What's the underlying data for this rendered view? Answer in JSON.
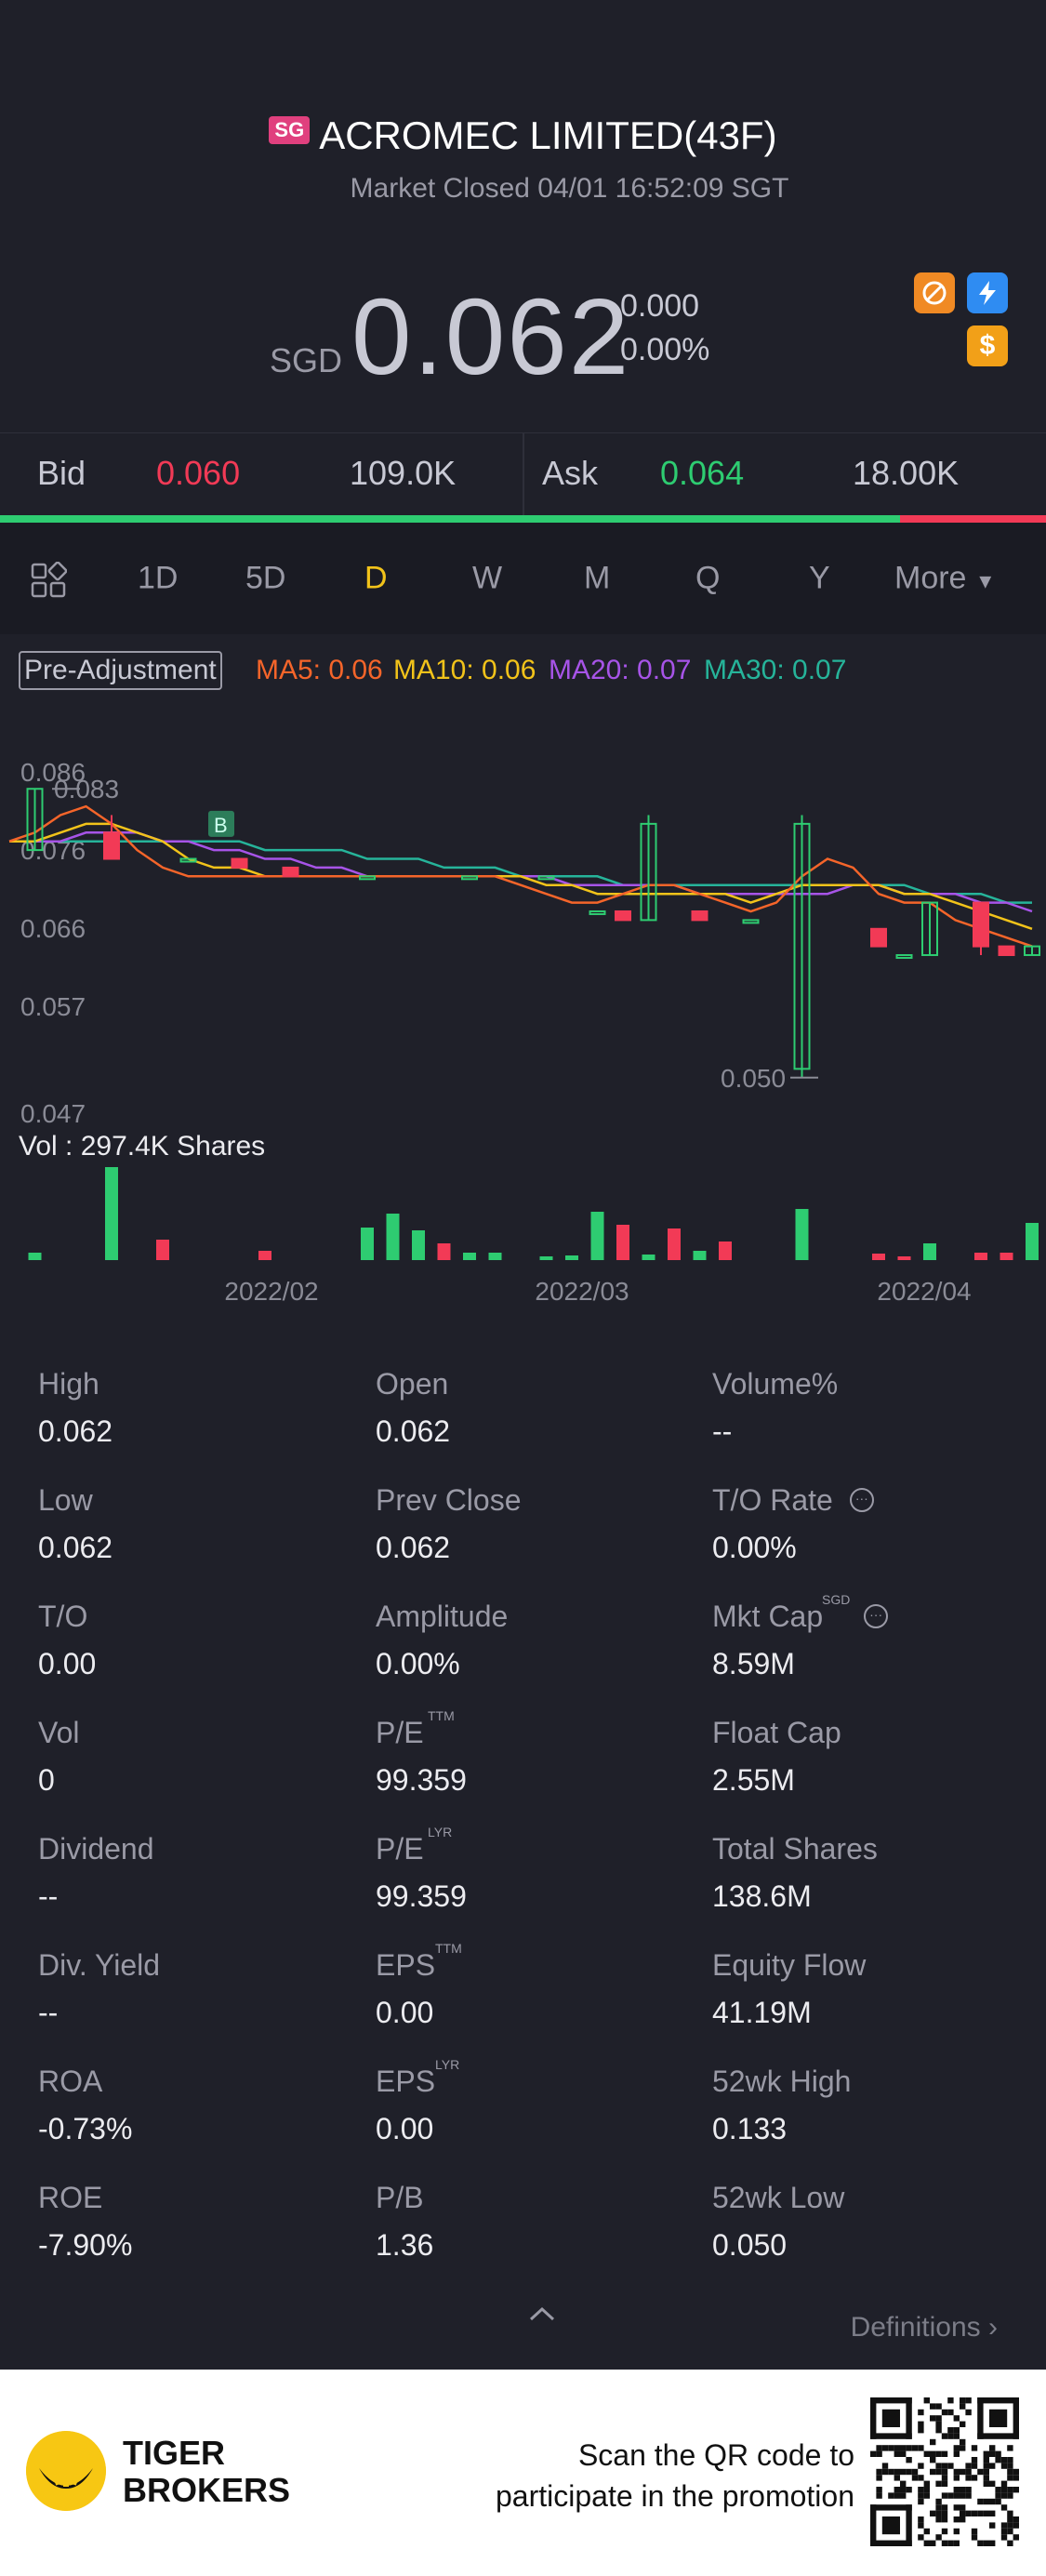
{
  "header": {
    "market_flag": "SG",
    "title": "ACROMEC LIMITED(43F)",
    "status": "Market Closed 04/01 16:52:09 SGT",
    "currency": "SGD",
    "price": "0.062",
    "change": "0.000",
    "change_pct": "0.00%",
    "badges": [
      "no-entry-icon",
      "lightning-icon",
      "dollar-icon"
    ]
  },
  "bidask": {
    "bid_label": "Bid",
    "bid_price": "0.060",
    "bid_size": "109.0K",
    "ask_label": "Ask",
    "ask_price": "0.064",
    "ask_size": "18.00K",
    "bid_fraction": 0.86
  },
  "tabs": [
    "1D",
    "5D",
    "D",
    "W",
    "M",
    "Q",
    "Y",
    "More"
  ],
  "active_tab": "D",
  "ma": {
    "pre_adjustment": "Pre-Adjustment",
    "ma5": "MA5: 0.06",
    "ma10": "MA10: 0.06",
    "ma20": "MA20: 0.07",
    "ma30": "MA30: 0.07"
  },
  "chart_data": {
    "type": "candlestick",
    "y_ticks": [
      "0.086",
      "0.076",
      "0.066",
      "0.057",
      "0.047"
    ],
    "ylim": [
      0.047,
      0.086
    ],
    "x_ticks": [
      "2022/02",
      "2022/03",
      "2022/04"
    ],
    "annotations": {
      "high_label": "0.083",
      "low_label": "0.050",
      "marker": "B"
    },
    "volume_label": "Vol  : 297.4K Shares",
    "colors": {
      "up": "#2ecc71",
      "down": "#f23a56",
      "ma5": "#f5652a",
      "ma10": "#f2c31a",
      "ma20": "#a754e8",
      "ma30": "#26b49a"
    },
    "candles": [
      {
        "i": 1,
        "o": 0.076,
        "c": 0.083,
        "h": 0.083,
        "l": 0.076
      },
      {
        "i": 4,
        "o": 0.078,
        "c": 0.075,
        "h": 0.08,
        "l": 0.075
      },
      {
        "i": 7,
        "o": 0.075,
        "c": 0.075,
        "h": 0.075,
        "l": 0.075
      },
      {
        "i": 9,
        "o": 0.075,
        "c": 0.074,
        "h": 0.075,
        "l": 0.074
      },
      {
        "i": 11,
        "o": 0.074,
        "c": 0.073,
        "h": 0.074,
        "l": 0.073
      },
      {
        "i": 14,
        "o": 0.073,
        "c": 0.073,
        "h": 0.073,
        "l": 0.073
      },
      {
        "i": 18,
        "o": 0.073,
        "c": 0.073,
        "h": 0.073,
        "l": 0.073
      },
      {
        "i": 21,
        "o": 0.073,
        "c": 0.073,
        "h": 0.073,
        "l": 0.073
      },
      {
        "i": 23,
        "o": 0.069,
        "c": 0.069,
        "h": 0.069,
        "l": 0.069
      },
      {
        "i": 24,
        "o": 0.069,
        "c": 0.068,
        "h": 0.069,
        "l": 0.068
      },
      {
        "i": 25,
        "o": 0.068,
        "c": 0.079,
        "h": 0.08,
        "l": 0.068
      },
      {
        "i": 27,
        "o": 0.069,
        "c": 0.068,
        "h": 0.069,
        "l": 0.068
      },
      {
        "i": 29,
        "o": 0.068,
        "c": 0.068,
        "h": 0.068,
        "l": 0.068
      },
      {
        "i": 31,
        "o": 0.051,
        "c": 0.079,
        "h": 0.08,
        "l": 0.05
      },
      {
        "i": 34,
        "o": 0.067,
        "c": 0.065,
        "h": 0.067,
        "l": 0.065
      },
      {
        "i": 35,
        "o": 0.064,
        "c": 0.064,
        "h": 0.064,
        "l": 0.064
      },
      {
        "i": 36,
        "o": 0.064,
        "c": 0.07,
        "h": 0.07,
        "l": 0.064
      },
      {
        "i": 38,
        "o": 0.07,
        "c": 0.065,
        "h": 0.07,
        "l": 0.064
      },
      {
        "i": 39,
        "o": 0.065,
        "c": 0.064,
        "h": 0.065,
        "l": 0.064
      },
      {
        "i": 40,
        "o": 0.064,
        "c": 0.065,
        "h": 0.065,
        "l": 0.064
      }
    ],
    "ma5": [
      0.077,
      0.078,
      0.08,
      0.081,
      0.079,
      0.076,
      0.074,
      0.073,
      0.073,
      0.073,
      0.073,
      0.073,
      0.073,
      0.073,
      0.073,
      0.073,
      0.073,
      0.073,
      0.073,
      0.073,
      0.072,
      0.071,
      0.07,
      0.07,
      0.071,
      0.072,
      0.072,
      0.071,
      0.07,
      0.069,
      0.07,
      0.073,
      0.075,
      0.074,
      0.071,
      0.07,
      0.07,
      0.068,
      0.067,
      0.066,
      0.065
    ],
    "ma10": [
      0.077,
      0.077,
      0.078,
      0.079,
      0.079,
      0.078,
      0.077,
      0.075,
      0.074,
      0.074,
      0.073,
      0.073,
      0.073,
      0.073,
      0.073,
      0.073,
      0.073,
      0.073,
      0.073,
      0.073,
      0.073,
      0.072,
      0.072,
      0.071,
      0.071,
      0.071,
      0.071,
      0.071,
      0.071,
      0.07,
      0.071,
      0.072,
      0.072,
      0.072,
      0.072,
      0.071,
      0.071,
      0.07,
      0.069,
      0.068,
      0.067
    ],
    "ma20": [
      0.077,
      0.077,
      0.077,
      0.078,
      0.078,
      0.078,
      0.077,
      0.077,
      0.076,
      0.076,
      0.075,
      0.075,
      0.074,
      0.074,
      0.073,
      0.073,
      0.073,
      0.073,
      0.073,
      0.073,
      0.073,
      0.073,
      0.072,
      0.072,
      0.072,
      0.072,
      0.072,
      0.071,
      0.071,
      0.071,
      0.071,
      0.071,
      0.071,
      0.072,
      0.072,
      0.071,
      0.071,
      0.071,
      0.07,
      0.07,
      0.069
    ],
    "ma30": [
      0.077,
      0.077,
      0.077,
      0.077,
      0.077,
      0.077,
      0.077,
      0.077,
      0.077,
      0.077,
      0.076,
      0.076,
      0.076,
      0.076,
      0.075,
      0.075,
      0.075,
      0.074,
      0.074,
      0.074,
      0.073,
      0.073,
      0.073,
      0.073,
      0.072,
      0.072,
      0.072,
      0.072,
      0.072,
      0.072,
      0.072,
      0.072,
      0.072,
      0.072,
      0.072,
      0.072,
      0.071,
      0.071,
      0.071,
      0.07,
      0.07
    ],
    "volume": [
      {
        "i": 1,
        "v": 0.08,
        "dir": "up"
      },
      {
        "i": 4,
        "v": 1.0,
        "dir": "up"
      },
      {
        "i": 6,
        "v": 0.22,
        "dir": "down"
      },
      {
        "i": 10,
        "v": 0.1,
        "dir": "down"
      },
      {
        "i": 14,
        "v": 0.35,
        "dir": "up"
      },
      {
        "i": 15,
        "v": 0.5,
        "dir": "up"
      },
      {
        "i": 16,
        "v": 0.32,
        "dir": "up"
      },
      {
        "i": 17,
        "v": 0.18,
        "dir": "down"
      },
      {
        "i": 18,
        "v": 0.08,
        "dir": "up"
      },
      {
        "i": 19,
        "v": 0.08,
        "dir": "up"
      },
      {
        "i": 21,
        "v": 0.04,
        "dir": "up"
      },
      {
        "i": 22,
        "v": 0.05,
        "dir": "up"
      },
      {
        "i": 23,
        "v": 0.52,
        "dir": "up"
      },
      {
        "i": 24,
        "v": 0.38,
        "dir": "down"
      },
      {
        "i": 25,
        "v": 0.06,
        "dir": "up"
      },
      {
        "i": 26,
        "v": 0.34,
        "dir": "down"
      },
      {
        "i": 27,
        "v": 0.1,
        "dir": "up"
      },
      {
        "i": 28,
        "v": 0.2,
        "dir": "down"
      },
      {
        "i": 31,
        "v": 0.55,
        "dir": "up"
      },
      {
        "i": 34,
        "v": 0.07,
        "dir": "down"
      },
      {
        "i": 35,
        "v": 0.04,
        "dir": "down"
      },
      {
        "i": 36,
        "v": 0.18,
        "dir": "up"
      },
      {
        "i": 38,
        "v": 0.08,
        "dir": "down"
      },
      {
        "i": 39,
        "v": 0.08,
        "dir": "down"
      },
      {
        "i": 40,
        "v": 0.4,
        "dir": "up"
      }
    ]
  },
  "stats": [
    {
      "label": "High",
      "value": "0.062"
    },
    {
      "label": "Open",
      "value": "0.062"
    },
    {
      "label": "Volume%",
      "value": "--"
    },
    {
      "label": "Low",
      "value": "0.062"
    },
    {
      "label": "Prev Close",
      "value": "0.062"
    },
    {
      "label": "T/O Rate",
      "value": "0.00%",
      "info": true
    },
    {
      "label": "T/O",
      "value": "0.00"
    },
    {
      "label": "Amplitude",
      "value": "0.00%"
    },
    {
      "label": "Mkt Cap",
      "value": "8.59M",
      "sup": "SGD",
      "info": true
    },
    {
      "label": "Vol",
      "value": "0"
    },
    {
      "label": "P/E",
      "value": "99.359",
      "sup": "TTM"
    },
    {
      "label": "Float Cap",
      "value": "2.55M"
    },
    {
      "label": "Dividend",
      "value": "--"
    },
    {
      "label": "P/E",
      "value": "99.359",
      "sup": "LYR"
    },
    {
      "label": "Total Shares",
      "value": "138.6M"
    },
    {
      "label": "Div. Yield",
      "value": "--"
    },
    {
      "label": "EPS",
      "value": "0.00",
      "sup": "TTM"
    },
    {
      "label": "Equity Flow",
      "value": "41.19M"
    },
    {
      "label": "ROA",
      "value": "-0.73%"
    },
    {
      "label": "EPS",
      "value": "0.00",
      "sup": "LYR"
    },
    {
      "label": "52wk High",
      "value": "0.133"
    },
    {
      "label": "ROE",
      "value": "-7.90%"
    },
    {
      "label": "P/B",
      "value": "1.36"
    },
    {
      "label": "52wk Low",
      "value": "0.050"
    }
  ],
  "definitions_label": "Definitions",
  "footer": {
    "brand_line1": "TIGER",
    "brand_line2": "BROKERS",
    "promo_line1": "Scan the QR code to",
    "promo_line2": "participate in the promotion"
  }
}
